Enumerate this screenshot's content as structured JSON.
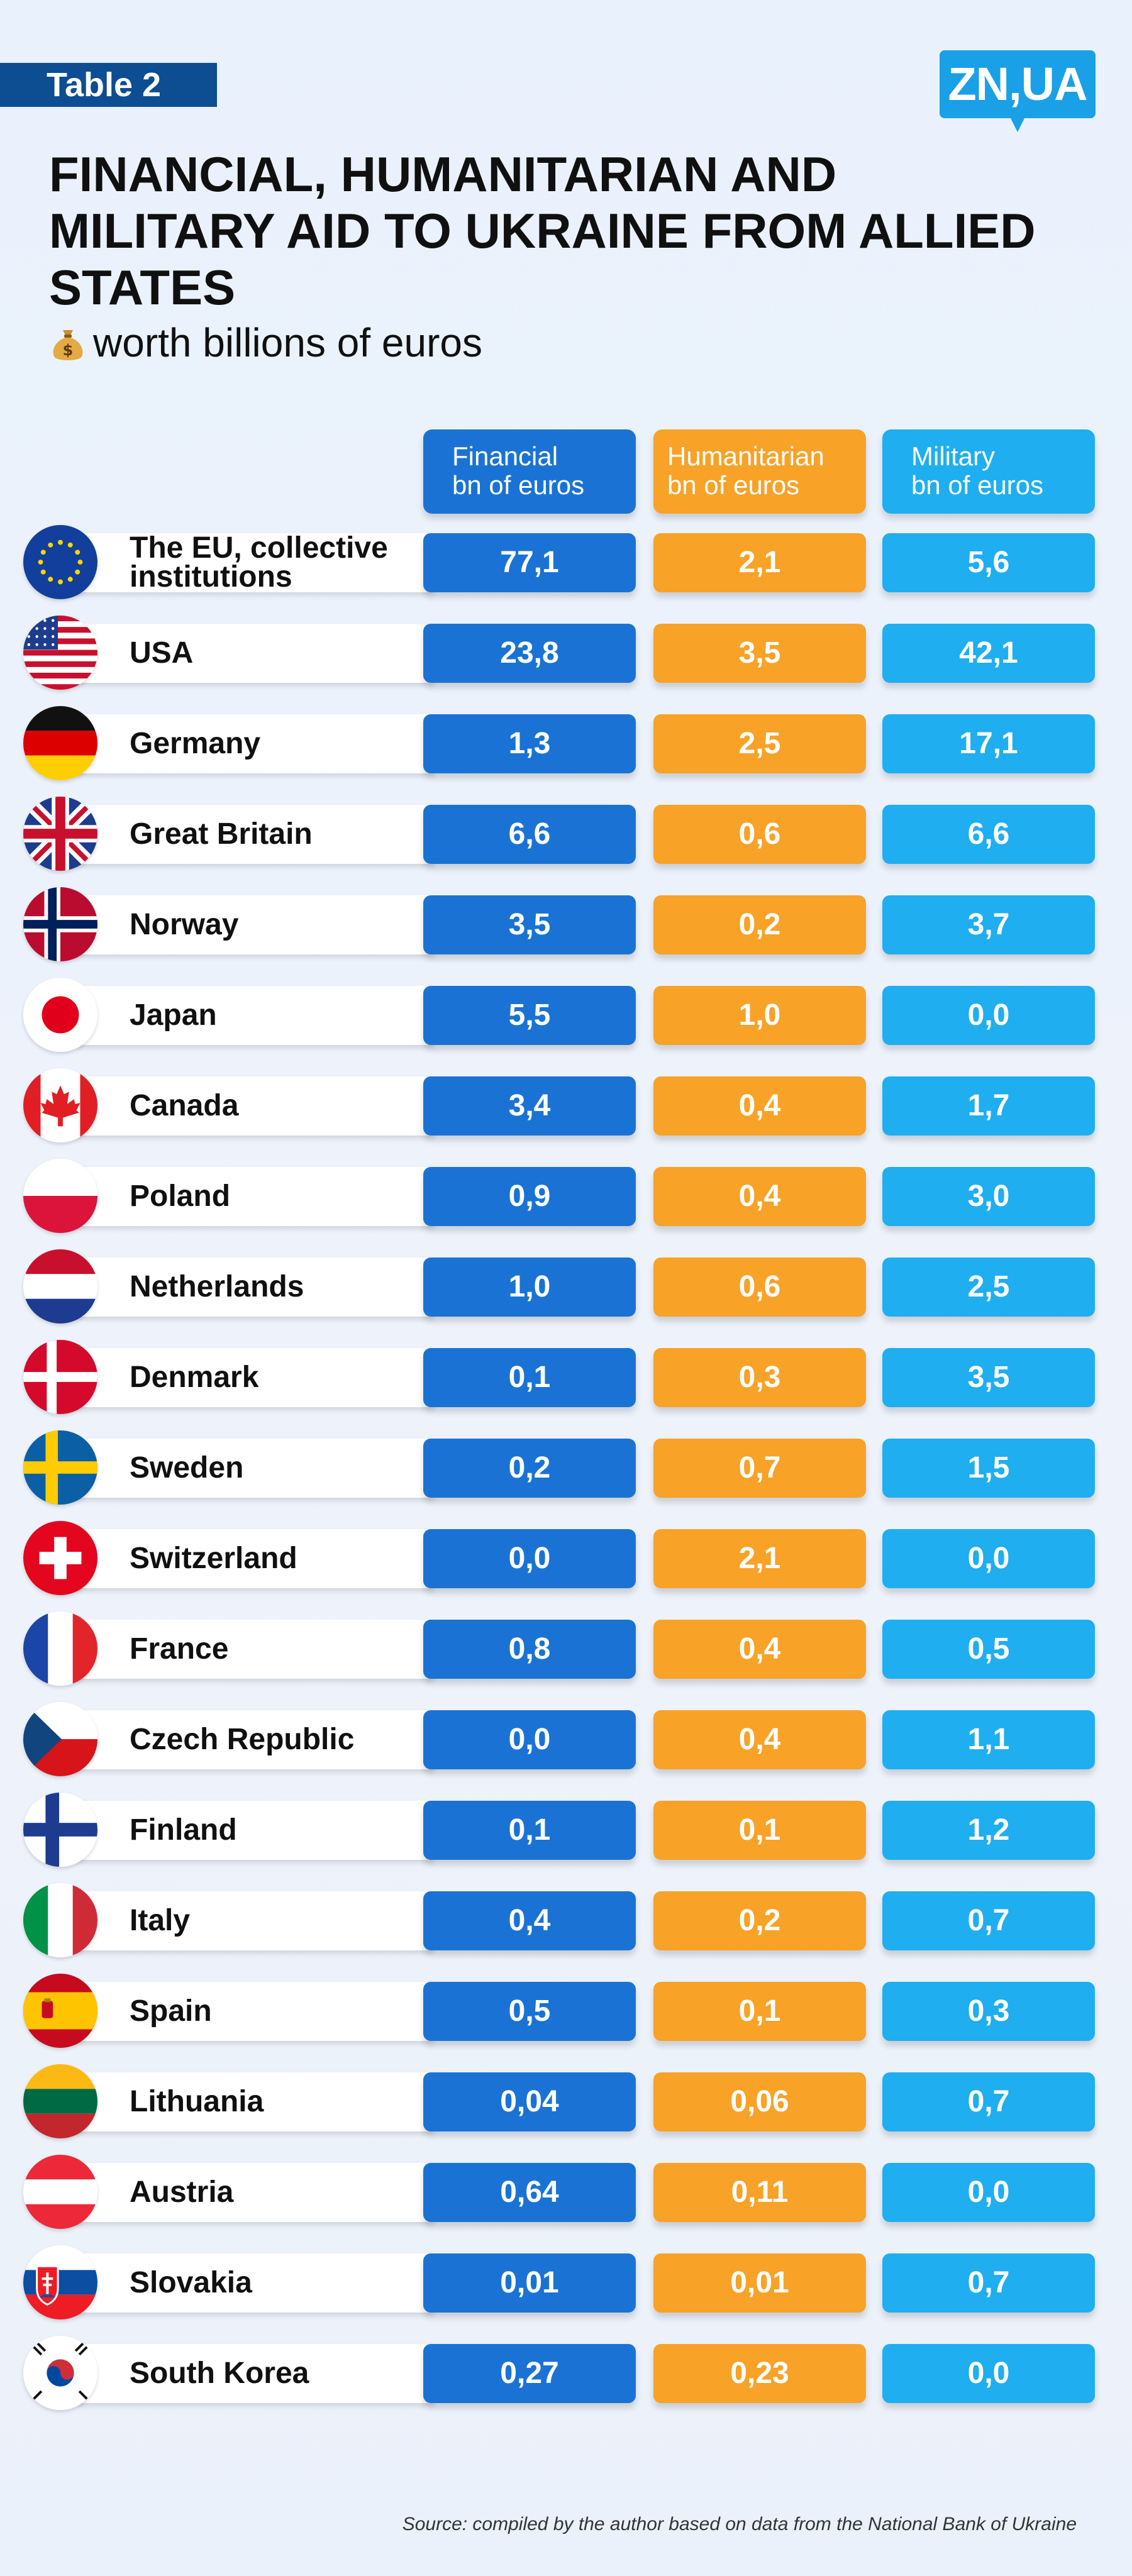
{
  "header": {
    "table_label": "Table 2",
    "logo": "ZN,UA",
    "title": "Financial, humanitarian and military aid to Ukraine from allied states",
    "subtitle": "worth billions of euros"
  },
  "columns": [
    {
      "name": "Financial",
      "unit": "bn of euros",
      "color": "#1a73d4"
    },
    {
      "name": "Humanitarian",
      "unit": "bn of euros",
      "color": "#f8a227"
    },
    {
      "name": "Military",
      "unit": "bn of euros",
      "color": "#1faef0"
    }
  ],
  "rows": [
    {
      "country": "The EU, collective institutions",
      "flag": "eu-flag-icon",
      "financial": "77,1",
      "humanitarian": "2,1",
      "military": "5,6"
    },
    {
      "country": "USA",
      "flag": "usa-flag-icon",
      "financial": "23,8",
      "humanitarian": "3,5",
      "military": "42,1"
    },
    {
      "country": "Germany",
      "flag": "germany-flag-icon",
      "financial": "1,3",
      "humanitarian": "2,5",
      "military": "17,1"
    },
    {
      "country": "Great Britain",
      "flag": "uk-flag-icon",
      "financial": "6,6",
      "humanitarian": "0,6",
      "military": "6,6"
    },
    {
      "country": "Norway",
      "flag": "norway-flag-icon",
      "financial": "3,5",
      "humanitarian": "0,2",
      "military": "3,7"
    },
    {
      "country": "Japan",
      "flag": "japan-flag-icon",
      "financial": "5,5",
      "humanitarian": "1,0",
      "military": "0,0"
    },
    {
      "country": "Canada",
      "flag": "canada-flag-icon",
      "financial": "3,4",
      "humanitarian": "0,4",
      "military": "1,7"
    },
    {
      "country": "Poland",
      "flag": "poland-flag-icon",
      "financial": "0,9",
      "humanitarian": "0,4",
      "military": "3,0"
    },
    {
      "country": "Netherlands",
      "flag": "netherlands-flag-icon",
      "financial": "1,0",
      "humanitarian": "0,6",
      "military": "2,5"
    },
    {
      "country": "Denmark",
      "flag": "denmark-flag-icon",
      "financial": "0,1",
      "humanitarian": "0,3",
      "military": "3,5"
    },
    {
      "country": "Sweden",
      "flag": "sweden-flag-icon",
      "financial": "0,2",
      "humanitarian": "0,7",
      "military": "1,5"
    },
    {
      "country": "Switzerland",
      "flag": "switzerland-flag-icon",
      "financial": "0,0",
      "humanitarian": "2,1",
      "military": "0,0"
    },
    {
      "country": "France",
      "flag": "france-flag-icon",
      "financial": "0,8",
      "humanitarian": "0,4",
      "military": "0,5"
    },
    {
      "country": "Czech Republic",
      "flag": "czech-flag-icon",
      "financial": "0,0",
      "humanitarian": "0,4",
      "military": "1,1"
    },
    {
      "country": "Finland",
      "flag": "finland-flag-icon",
      "financial": "0,1",
      "humanitarian": "0,1",
      "military": "1,2"
    },
    {
      "country": "Italy",
      "flag": "italy-flag-icon",
      "financial": "0,4",
      "humanitarian": "0,2",
      "military": "0,7"
    },
    {
      "country": "Spain",
      "flag": "spain-flag-icon",
      "financial": "0,5",
      "humanitarian": "0,1",
      "military": "0,3"
    },
    {
      "country": "Lithuania",
      "flag": "lithuania-flag-icon",
      "financial": "0,04",
      "humanitarian": "0,06",
      "military": "0,7"
    },
    {
      "country": "Austria",
      "flag": "austria-flag-icon",
      "financial": "0,64",
      "humanitarian": "0,11",
      "military": "0,0"
    },
    {
      "country": "Slovakia",
      "flag": "slovakia-flag-icon",
      "financial": "0,01",
      "humanitarian": "0,01",
      "military": "0,7"
    },
    {
      "country": "South Korea",
      "flag": "south-korea-flag-icon",
      "financial": "0,27",
      "humanitarian": "0,23",
      "military": "0,0"
    }
  ],
  "source": "Source: compiled by the author based on data from the National Bank of Ukraine",
  "chart_data": {
    "type": "table",
    "title": "Financial, humanitarian and military aid to Ukraine from allied states",
    "subtitle": "worth billions of euros",
    "columns": [
      "Financial bn of euros",
      "Humanitarian bn of euros",
      "Military bn of euros"
    ],
    "categories": [
      "The EU, collective institutions",
      "USA",
      "Germany",
      "Great Britain",
      "Norway",
      "Japan",
      "Canada",
      "Poland",
      "Netherlands",
      "Denmark",
      "Sweden",
      "Switzerland",
      "France",
      "Czech Republic",
      "Finland",
      "Italy",
      "Spain",
      "Lithuania",
      "Austria",
      "Slovakia",
      "South Korea"
    ],
    "series": [
      {
        "name": "Financial",
        "values": [
          77.1,
          23.8,
          1.3,
          6.6,
          3.5,
          5.5,
          3.4,
          0.9,
          1.0,
          0.1,
          0.2,
          0.0,
          0.8,
          0.0,
          0.1,
          0.4,
          0.5,
          0.04,
          0.64,
          0.01,
          0.27
        ]
      },
      {
        "name": "Humanitarian",
        "values": [
          2.1,
          3.5,
          2.5,
          0.6,
          0.2,
          1.0,
          0.4,
          0.4,
          0.6,
          0.3,
          0.7,
          2.1,
          0.4,
          0.4,
          0.1,
          0.2,
          0.1,
          0.06,
          0.11,
          0.01,
          0.23
        ]
      },
      {
        "name": "Military",
        "values": [
          5.6,
          42.1,
          17.1,
          6.6,
          3.7,
          0.0,
          1.7,
          3.0,
          2.5,
          3.5,
          1.5,
          0.0,
          0.5,
          1.1,
          1.2,
          0.7,
          0.3,
          0.7,
          0.0,
          0.7,
          0.0
        ]
      }
    ]
  }
}
